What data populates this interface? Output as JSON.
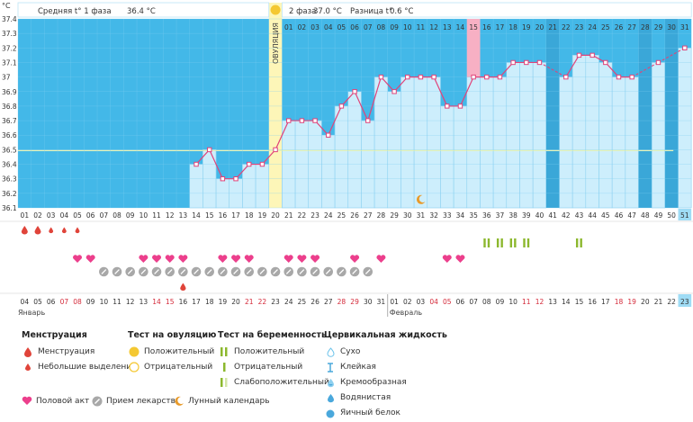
{
  "chart_data": {
    "type": "line",
    "y_unit": "°C",
    "ylim": [
      36.1,
      37.4
    ],
    "y_ticks": [
      "37.4",
      "37.3",
      "37.2",
      "37.1",
      "37",
      "36.9",
      "36.8",
      "36.7",
      "36.6",
      "36.5",
      "36.4",
      "36.3",
      "36.2",
      "36.1"
    ],
    "cycle_days": [
      "01",
      "02",
      "03",
      "04",
      "05",
      "06",
      "07",
      "08",
      "09",
      "10",
      "11",
      "12",
      "13",
      "14",
      "15",
      "16",
      "17",
      "18",
      "19",
      "20",
      "21",
      "22",
      "23",
      "24",
      "25",
      "26",
      "27",
      "28",
      "29",
      "30",
      "31",
      "32",
      "33",
      "34",
      "35",
      "36",
      "37",
      "38",
      "39",
      "40",
      "41",
      "42",
      "43",
      "44",
      "45",
      "46",
      "47",
      "48",
      "49",
      "50",
      "51"
    ],
    "phase2_days": [
      "01",
      "02",
      "03",
      "04",
      "05",
      "06",
      "07",
      "08",
      "09",
      "10",
      "11",
      "12",
      "13",
      "14",
      "15",
      "16",
      "17",
      "18",
      "19",
      "20",
      "21",
      "22",
      "23",
      "24",
      "25",
      "26",
      "27",
      "28",
      "29",
      "30",
      "31"
    ],
    "temperatures": [
      null,
      null,
      null,
      null,
      null,
      null,
      null,
      null,
      null,
      null,
      null,
      null,
      null,
      36.4,
      36.5,
      36.3,
      36.3,
      36.4,
      36.4,
      36.5,
      36.7,
      36.7,
      36.7,
      36.6,
      36.8,
      36.9,
      36.7,
      37.0,
      36.9,
      37.0,
      37.0,
      37.0,
      36.8,
      36.8,
      37.0,
      37.0,
      37.0,
      37.1,
      37.1,
      37.1,
      null,
      37.0,
      37.15,
      37.15,
      37.1,
      37.0,
      37.0,
      null,
      37.1,
      null,
      37.2
    ],
    "missing_bar_days": [
      41,
      48,
      50
    ],
    "ovulation_day": 20,
    "ovulation_label": "ОВУЛЯЦИЯ",
    "highlight_day_phase2": 15,
    "phase1_text": "Средняя t° 1 фаза",
    "phase1_avg": "36.4 °C",
    "phase2_text": "2 фаза",
    "phase2_avg": "37.0 °C",
    "diff_text": "Разница t°",
    "diff_value": "0.6 °C",
    "coverline": 36.5,
    "menstruation_days": [
      1,
      2,
      3,
      4,
      5
    ],
    "menstruation_heavy_days": [
      1,
      2
    ],
    "pregnancy_test_days": [
      36,
      37,
      38,
      39,
      43
    ],
    "intercourse_days": [
      5,
      6,
      10,
      11,
      12,
      13,
      16,
      17,
      18,
      21,
      22,
      23,
      26,
      28,
      33,
      34
    ],
    "medication_days": [
      7,
      8,
      9,
      10,
      11,
      12,
      13,
      14,
      15,
      16,
      17,
      18,
      19,
      20,
      21,
      22,
      23,
      24,
      25,
      26,
      27
    ],
    "fluid_days": [
      {
        "day": 13,
        "type": "watery"
      }
    ],
    "moon_day": 31,
    "current_day": 51,
    "calendar_dates": [
      "04",
      "05",
      "06",
      "07",
      "08",
      "09",
      "10",
      "11",
      "12",
      "13",
      "14",
      "15",
      "16",
      "17",
      "18",
      "19",
      "20",
      "21",
      "22",
      "23",
      "24",
      "25",
      "26",
      "27",
      "28",
      "29",
      "30",
      "31",
      "01",
      "02",
      "03",
      "04",
      "05",
      "06",
      "07",
      "08",
      "09",
      "10",
      "11",
      "12",
      "13",
      "14",
      "15",
      "16",
      "17",
      "18",
      "19",
      "20",
      "21",
      "22",
      "23"
    ],
    "weekend_dates_index": [
      3,
      4,
      10,
      11,
      17,
      18,
      24,
      25,
      31,
      32,
      38,
      39,
      45,
      46
    ],
    "month1": "Январь",
    "month2": "Февраль",
    "colors": {
      "bg": "#43b8e8",
      "bar": "#cdeefc",
      "bar_stroke": "#9fd8f3",
      "line": "#e0447a",
      "ovulation": "#fdf6b8",
      "highlight": "#f7b0c4",
      "current": "#9fdcf5",
      "moon": "#e89a2a",
      "heart": "#ec3f8c",
      "drop": "#e0443a",
      "pill": "#9a9a9a",
      "preg": "#8cb82e"
    }
  },
  "legend": {
    "menstruation": {
      "title": "Менструация",
      "items": [
        "Менструация",
        "Небольшие выделения"
      ]
    },
    "ovulation_test": {
      "title": "Тест на овуляцию",
      "items": [
        "Положительный",
        "Отрицательный"
      ]
    },
    "pregnancy_test": {
      "title": "Тест на беременность",
      "items": [
        "Положительный",
        "Отрицательный",
        "Слабоположительный"
      ]
    },
    "cervical_fluid": {
      "title": "Цервикальная жидкость",
      "items": [
        "Сухо",
        "Клейкая",
        "Кремообразная",
        "Водянистая",
        "Яичный белок"
      ]
    },
    "footer": [
      "Половой акт",
      "Прием лекарств",
      "Лунный календарь"
    ]
  }
}
